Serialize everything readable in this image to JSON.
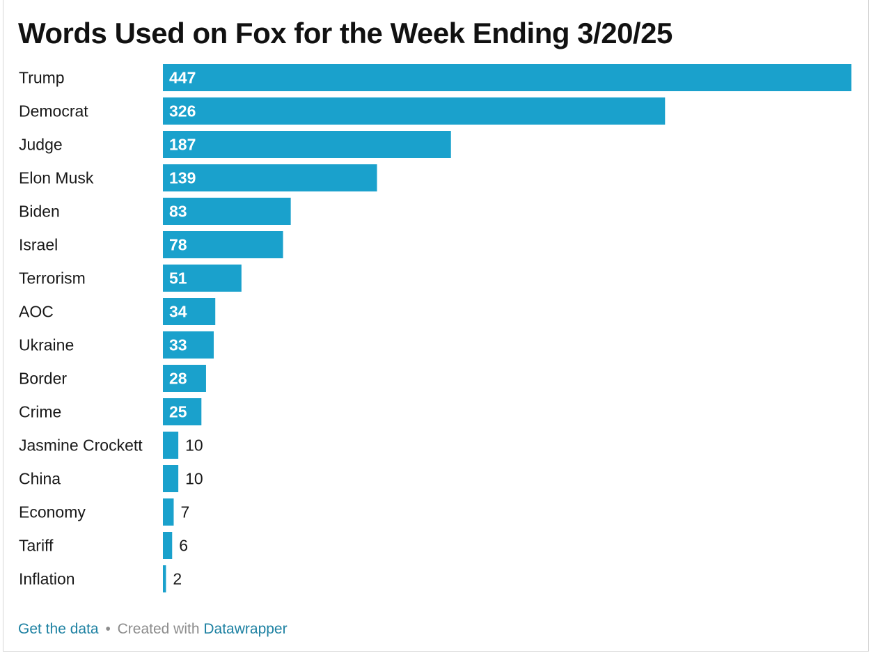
{
  "title": "Words Used on Fox for the Week Ending 3/20/25",
  "footer": {
    "get_data": "Get the data",
    "separator": "•",
    "created_with": "Created with",
    "tool": "Datawrapper"
  },
  "colors": {
    "bar": "#1aa1cc",
    "label_inside": "#ffffff",
    "label_outside": "#181818",
    "link": "#1d81a2"
  },
  "chart_data": {
    "type": "bar",
    "orientation": "horizontal",
    "categories": [
      "Trump",
      "Democrat",
      "Judge",
      "Elon Musk",
      "Biden",
      "Israel",
      "Terrorism",
      "AOC",
      "Ukraine",
      "Border",
      "Crime",
      "Jasmine Crockett",
      "China",
      "Economy",
      "Tariff",
      "Inflation"
    ],
    "values": [
      447,
      326,
      187,
      139,
      83,
      78,
      51,
      34,
      33,
      28,
      25,
      10,
      10,
      7,
      6,
      2
    ],
    "title": "Words Used on Fox for the Week Ending 3/20/25",
    "xlabel": "",
    "ylabel": "",
    "xlim": [
      0,
      447
    ],
    "grid": false,
    "legend": "none"
  }
}
